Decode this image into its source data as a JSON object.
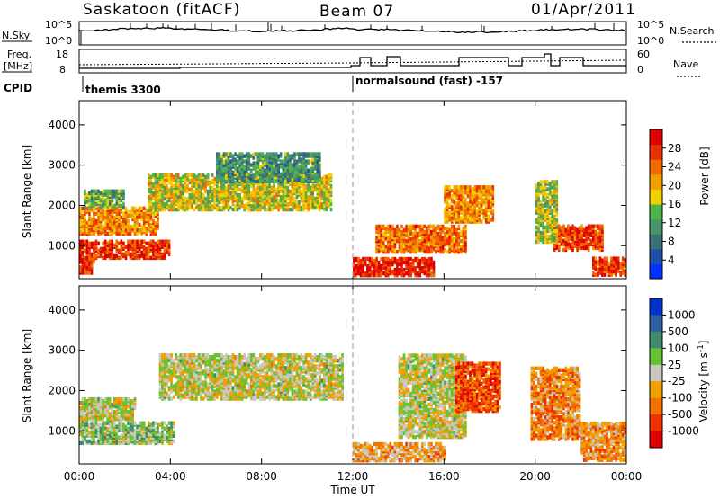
{
  "header": {
    "site": "Saskatoon (fitACF)",
    "beam": "Beam 07",
    "date": "01/Apr/2011"
  },
  "top_panels": {
    "nsky_label": "N.Sky",
    "nsky_ticks": [
      "10^5",
      "10^0"
    ],
    "nsearch_label": "N.Search",
    "nsearch_ticks": [
      "10^5",
      "10^0"
    ],
    "freq_label_1": "Freq.",
    "freq_label_2": "[MHz]",
    "freq_ticks": [
      "18",
      "8"
    ],
    "nave_label": "Nave",
    "nave_ticks": [
      "60",
      "0"
    ],
    "cpid_label": "CPID",
    "modes": [
      {
        "name": "themis 3300",
        "start_hour": 0
      },
      {
        "name": "normalsound (fast) -157",
        "start_hour": 12
      }
    ]
  },
  "chart_data": [
    {
      "type": "heatmap",
      "title": "",
      "xlabel": "Time UT",
      "ylabel": "Slant Range [km]",
      "x_ticks": [
        "00:00",
        "04:00",
        "08:00",
        "12:00",
        "16:00",
        "20:00",
        "00:00"
      ],
      "xlim_hours": [
        0,
        24
      ],
      "y_ticks": [
        1000,
        2000,
        3000,
        4000
      ],
      "ylim_km": [
        180,
        4600
      ],
      "colorbar": {
        "label": "Power [dB]",
        "ticks": [
          "4",
          "8",
          "12",
          "16",
          "20",
          "24",
          "28"
        ],
        "range": [
          0,
          32
        ],
        "colors": [
          "#0033ff",
          "#1f4fa6",
          "#3a6f78",
          "#48956a",
          "#4fb34a",
          "#f0d000",
          "#f0a000",
          "#f06a00",
          "#e83000",
          "#e00000"
        ]
      },
      "blobs": [
        {
          "t0": 0.0,
          "t1": 0.7,
          "r0": 330,
          "r1": 700,
          "level": 0.85
        },
        {
          "t0": 0.0,
          "t1": 4.0,
          "r0": 700,
          "r1": 1150,
          "level": 0.85
        },
        {
          "t0": 0.0,
          "t1": 3.5,
          "r0": 1300,
          "r1": 1950,
          "level": 0.7
        },
        {
          "t0": 0.2,
          "t1": 2.0,
          "r0": 1950,
          "r1": 2400,
          "level": 0.4
        },
        {
          "t0": 3.0,
          "t1": 11.0,
          "r0": 1900,
          "r1": 2800,
          "level": 0.55
        },
        {
          "t0": 6.0,
          "t1": 10.5,
          "r0": 2600,
          "r1": 3300,
          "level": 0.35
        },
        {
          "t0": 12.0,
          "t1": 15.5,
          "r0": 270,
          "r1": 700,
          "level": 0.9
        },
        {
          "t0": 13.0,
          "t1": 17.0,
          "r0": 850,
          "r1": 1500,
          "level": 0.75
        },
        {
          "t0": 16.0,
          "t1": 18.2,
          "r0": 1600,
          "r1": 2500,
          "level": 0.7
        },
        {
          "t0": 20.8,
          "t1": 23.0,
          "r0": 900,
          "r1": 1500,
          "level": 0.85
        },
        {
          "t0": 22.5,
          "t1": 24.0,
          "r0": 280,
          "r1": 700,
          "level": 0.85
        },
        {
          "t0": 20.0,
          "t1": 21.0,
          "r0": 1100,
          "r1": 2600,
          "level": 0.5
        }
      ]
    },
    {
      "type": "heatmap",
      "title": "",
      "xlabel": "Time UT",
      "ylabel": "Slant Range [km]",
      "x_ticks": [
        "00:00",
        "04:00",
        "08:00",
        "12:00",
        "16:00",
        "20:00",
        "00:00"
      ],
      "xlim_hours": [
        0,
        24
      ],
      "y_ticks": [
        1000,
        2000,
        3000,
        4000
      ],
      "ylim_km": [
        180,
        4600
      ],
      "colorbar": {
        "label": "Velocity [m s^-1]",
        "ticks": [
          "1000",
          "500",
          "100",
          "25",
          "-25",
          "-100",
          "-500",
          "-1000"
        ],
        "colors": [
          "#0033cc",
          "#2f5fa0",
          "#3f8a6a",
          "#66c233",
          "#c8c8c0",
          "#f0a000",
          "#f07000",
          "#f03000",
          "#e00000"
        ]
      },
      "blobs": [
        {
          "t0": 0.0,
          "t1": 4.2,
          "r0": 700,
          "r1": 1200,
          "level": 0.42
        },
        {
          "t0": 0.0,
          "t1": 2.5,
          "r0": 1250,
          "r1": 1800,
          "level": 0.5
        },
        {
          "t0": 3.5,
          "t1": 11.5,
          "r0": 1800,
          "r1": 2900,
          "level": 0.5
        },
        {
          "t0": 12.0,
          "t1": 16.0,
          "r0": 270,
          "r1": 720,
          "level": 0.62
        },
        {
          "t0": 14.0,
          "t1": 17.0,
          "r0": 850,
          "r1": 2900,
          "level": 0.5
        },
        {
          "t0": 16.5,
          "t1": 18.5,
          "r0": 1500,
          "r1": 2700,
          "level": 0.78
        },
        {
          "t0": 19.8,
          "t1": 22.0,
          "r0": 800,
          "r1": 2600,
          "level": 0.68
        },
        {
          "t0": 22.0,
          "t1": 24.0,
          "r0": 280,
          "r1": 1200,
          "level": 0.66
        }
      ]
    }
  ]
}
